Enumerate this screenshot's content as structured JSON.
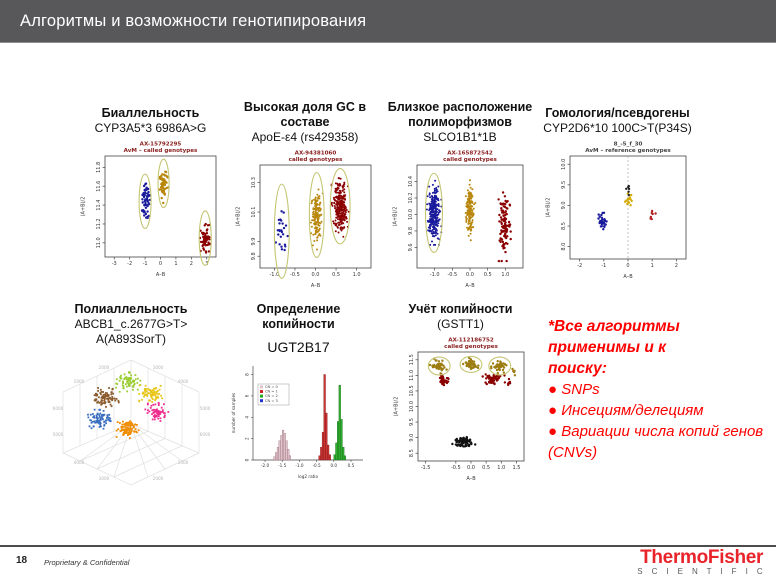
{
  "slide": {
    "title": "Алгоритмы и возможности генотипирования",
    "page_number": "18",
    "footer_note": "Proprietary & Confidential",
    "logo_line1": "ThermoFisher",
    "logo_line2": "S C I E N T I F I C",
    "colors": {
      "header_bg": "#58585a",
      "note_red": "#fe0000",
      "logo_red": "#e8232a",
      "logo_gray": "#58595b",
      "genotype_blue": "#1a1a9c",
      "genotype_olive": "#b8860b",
      "genotype_darkred": "#8b0000",
      "ellipse_khaki": "#c5c573"
    }
  },
  "panels": [
    {
      "heading": "Биаллельность",
      "subheading": "CYP3A5*3 6986A>G"
    },
    {
      "heading": "Высокая доля GC в\nсоставе",
      "subheading": "ApoE-ε4 (rs429358)"
    },
    {
      "heading": "Близкое расположение\nполиморфизмов",
      "subheading": "SLCO1B1*1B"
    },
    {
      "heading": "Гомология/псевдогены",
      "subheading": "CYP2D6*10 100C>T(P34S)"
    },
    {
      "heading": "Полиаллельность",
      "subheading": "ABCB1_c.2677G>T>\nA(A893SorT)"
    },
    {
      "heading": "Определение\nкопийности",
      "subheading": "UGT2B17"
    },
    {
      "heading": "Учёт копийности",
      "subheading": "(GSTT1)"
    }
  ],
  "note": {
    "heading": "*Все алгоритмы\nприменимы и к\nпоиску:",
    "bullets": [
      "● SNPs",
      "● Инсециям/делециям",
      "● Вариации числа копий генов (CNVs)"
    ]
  },
  "chart_data": [
    {
      "type": "scatter",
      "title": "AX-15792295",
      "subtitle": "AvM – called genotypes",
      "title_color": "#8b2020",
      "xlabel": "A–B",
      "ylabel": "(A+B)/2",
      "xlim": [
        -3.6,
        3.6
      ],
      "ylim": [
        10.85,
        11.92
      ],
      "xticks": [
        -3,
        -2,
        -1,
        0,
        1,
        2,
        3
      ],
      "xtick_labels": [
        "-3",
        "-2",
        "-1",
        "0",
        "1",
        "2",
        "3"
      ],
      "yticks": [
        11.0,
        11.2,
        11.4,
        11.6,
        11.8
      ],
      "ytick_labels": [
        "11.0",
        "11.2",
        "11.4",
        "11.6",
        "11.8"
      ],
      "clusters": [
        {
          "color": "#1a1a9c",
          "cx": -1.0,
          "cy": 11.44,
          "sx": 0.13,
          "sy": 0.09,
          "n": 60,
          "ellipse": true
        },
        {
          "color": "#b8860b",
          "cx": 0.2,
          "cy": 11.63,
          "sx": 0.12,
          "sy": 0.08,
          "n": 60,
          "ellipse": true
        },
        {
          "color": "#8b0000",
          "cx": 2.9,
          "cy": 11.05,
          "sx": 0.13,
          "sy": 0.09,
          "n": 60,
          "ellipse": true
        }
      ]
    },
    {
      "type": "scatter",
      "title": "AX-94381060",
      "subtitle": "called genotypes",
      "title_color": "#8b2020",
      "xlabel": "A–B",
      "ylabel": "(A+B)/2",
      "xlim": [
        -1.35,
        1.35
      ],
      "ylim": [
        9.72,
        10.42
      ],
      "xticks": [
        -1.0,
        -0.5,
        0.0,
        0.5,
        1.0
      ],
      "xtick_labels": [
        "-1.0",
        "-0.5",
        "0.0",
        "0.5",
        "1.0"
      ],
      "yticks": [
        9.8,
        9.9,
        10.1,
        10.3
      ],
      "ytick_labels": [
        "9.8",
        "9.9",
        "10.1",
        "10.3"
      ],
      "clusters": [
        {
          "color": "#1a1a9c",
          "cx": -0.82,
          "cy": 9.97,
          "sx": 0.06,
          "sy": 0.1,
          "n": 26,
          "ellipse": true
        },
        {
          "color": "#b8860b",
          "cx": 0.03,
          "cy": 10.08,
          "sx": 0.06,
          "sy": 0.09,
          "n": 150,
          "ellipse": true
        },
        {
          "color": "#8b0000",
          "cx": 0.6,
          "cy": 10.14,
          "sx": 0.08,
          "sy": 0.08,
          "n": 280,
          "ellipse": true
        }
      ]
    },
    {
      "type": "scatter",
      "title": "AX-165872542",
      "subtitle": "called genotypes",
      "title_color": "#8b2020",
      "xlabel": "A–B",
      "ylabel": "(A+B)/2",
      "xlim": [
        -1.5,
        1.5
      ],
      "ylim": [
        9.35,
        10.6
      ],
      "xticks": [
        -1.0,
        -0.5,
        0.0,
        0.5,
        1.0
      ],
      "xtick_labels": [
        "-1.0",
        "-0.5",
        "0.0",
        "0.5",
        "1.0"
      ],
      "yticks": [
        9.6,
        9.8,
        10.0,
        10.2,
        10.4
      ],
      "ytick_labels": [
        "9.6",
        "9.8",
        "10.0",
        "10.2",
        "10.4"
      ],
      "clusters": [
        {
          "color": "#1a1a9c",
          "cx": -1.02,
          "cy": 10.02,
          "sx": 0.08,
          "sy": 0.15,
          "n": 260,
          "ellipse": true
        },
        {
          "color": "#b8860b",
          "cx": 0.0,
          "cy": 10.05,
          "sx": 0.06,
          "sy": 0.14,
          "n": 160,
          "ellipse": false
        },
        {
          "color": "#8b0000",
          "cx": 0.97,
          "cy": 9.85,
          "sx": 0.07,
          "sy": 0.16,
          "n": 110,
          "ellipse": false
        }
      ]
    },
    {
      "type": "scatter",
      "title": "8_-5_f_30",
      "subtitle": "AvM – reference genotypes",
      "title_color": "#444444",
      "xlabel": "A–B",
      "ylabel": "(A+B)/2",
      "xlim": [
        -2.4,
        2.4
      ],
      "ylim": [
        7.7,
        10.2
      ],
      "vline": 0,
      "xticks": [
        -2,
        -1,
        0,
        1,
        2
      ],
      "xtick_labels": [
        "-2",
        "-1",
        "0",
        "1",
        "2"
      ],
      "yticks": [
        8.0,
        8.5,
        9.0,
        9.5,
        10.0
      ],
      "ytick_labels": [
        "8.0",
        "8.5",
        "9.0",
        "9.5",
        "10.0"
      ],
      "clusters": [
        {
          "color": "#1a1a9c",
          "cx": -1.05,
          "cy": 8.6,
          "sx": 0.08,
          "sy": 0.14,
          "n": 32,
          "ellipse": false
        },
        {
          "color": "#d4aa00",
          "cx": 0.02,
          "cy": 9.15,
          "sx": 0.06,
          "sy": 0.09,
          "n": 13,
          "ellipse": false
        },
        {
          "color": "#222222",
          "cx": 0.0,
          "cy": 9.4,
          "sx": 0.05,
          "sy": 0.07,
          "n": 6,
          "ellipse": false
        },
        {
          "color": "#b22222",
          "cx": 1.0,
          "cy": 8.75,
          "sx": 0.09,
          "sy": 0.06,
          "n": 7,
          "ellipse": false
        }
      ]
    },
    {
      "type": "scatter3d",
      "tick_labels": [
        "1000",
        "2000",
        "3000",
        "4000",
        "5000",
        "6000"
      ],
      "clusters": [
        {
          "color": "#8b5a2b",
          "fx": 0.35,
          "fy": 0.33,
          "n": 85
        },
        {
          "color": "#9acd32",
          "fx": 0.48,
          "fy": 0.22,
          "n": 70
        },
        {
          "color": "#e8c619",
          "fx": 0.62,
          "fy": 0.3,
          "n": 75
        },
        {
          "color": "#ef2f8f",
          "fx": 0.65,
          "fy": 0.43,
          "n": 70
        },
        {
          "color": "#3a6fbf",
          "fx": 0.31,
          "fy": 0.48,
          "n": 85
        },
        {
          "color": "#f08c00",
          "fx": 0.47,
          "fy": 0.54,
          "n": 90
        }
      ]
    },
    {
      "type": "histogram",
      "xlabel": "log2 ratio",
      "ylabel": "number of samples",
      "xlim": [
        -2.35,
        0.85
      ],
      "ylim": [
        0,
        8.8
      ],
      "xticks": [
        -2.0,
        -1.5,
        -1.0,
        -0.5,
        0.0,
        0.5
      ],
      "xtick_labels": [
        "-2.0",
        "-1.5",
        "-1.0",
        "-0.5",
        "0.0",
        "0.5"
      ],
      "yticks": [
        0,
        2,
        4,
        6,
        8
      ],
      "ytick_labels": [
        "0",
        "2",
        "4",
        "6",
        "8"
      ],
      "bar_width": 0.05,
      "legend": [
        {
          "label": "CN = 0",
          "color": "#dfc3cb"
        },
        {
          "label": "CN = 1",
          "color": "#cc2222"
        },
        {
          "label": "CN = 2",
          "color": "#22aa22"
        },
        {
          "label": "CN = 3",
          "color": "#2233cc"
        }
      ],
      "groups": [
        {
          "color": "#dfc3cb",
          "edge": "#9a6b76",
          "start": -1.75,
          "heights": [
            0.3,
            0.7,
            1.2,
            1.8,
            2.3,
            2.8,
            2.5,
            1.8,
            1.0,
            0.4
          ]
        },
        {
          "color": "#cc3333",
          "edge": "#7a1515",
          "start": -0.44,
          "heights": [
            0.4,
            1.2,
            2.6,
            8.0,
            4.4,
            1.4,
            0.5
          ]
        },
        {
          "color": "#2fae2f",
          "edge": "#156615",
          "start": 0.0,
          "heights": [
            0.5,
            1.6,
            3.6,
            7.0,
            3.8,
            1.2,
            0.4
          ]
        }
      ]
    },
    {
      "type": "scatter",
      "title": "AX-112186752",
      "subtitle": "called genotypes",
      "title_color": "#8b2020",
      "xlabel": "A–B",
      "ylabel": "(A+B)/2",
      "xlim": [
        -1.75,
        1.75
      ],
      "ylim": [
        8.25,
        11.75
      ],
      "xticks": [
        -1.5,
        -0.5,
        0.0,
        0.5,
        1.0,
        1.5
      ],
      "xtick_labels": [
        "-1.5",
        "-0.5",
        "0.0",
        "0.5",
        "1.0",
        "1.5"
      ],
      "yticks": [
        8.5,
        9.0,
        9.5,
        10.0,
        10.5,
        11.0,
        11.5
      ],
      "ytick_labels": [
        "8.5",
        "9.0",
        "9.5",
        "10.0",
        "10.5",
        "11.0",
        "11.5"
      ],
      "clusters": [
        {
          "color": "#9c7d12",
          "cx": -1.05,
          "cy": 11.3,
          "sx": 0.12,
          "sy": 0.09,
          "n": 45,
          "ellipse": true
        },
        {
          "color": "#9c7d12",
          "cx": 0.0,
          "cy": 11.35,
          "sx": 0.12,
          "sy": 0.08,
          "n": 45,
          "ellipse": true
        },
        {
          "color": "#9c7d12",
          "cx": 0.95,
          "cy": 11.3,
          "sx": 0.12,
          "sy": 0.09,
          "n": 45,
          "ellipse": true
        },
        {
          "color": "#9c7d12",
          "cx": 1.4,
          "cy": 11.1,
          "sx": 0.05,
          "sy": 0.06,
          "n": 8,
          "ellipse": false
        },
        {
          "color": "#8b0000",
          "cx": -0.9,
          "cy": 10.85,
          "sx": 0.11,
          "sy": 0.08,
          "n": 40,
          "ellipse": false
        },
        {
          "color": "#8b0000",
          "cx": 0.75,
          "cy": 10.9,
          "sx": 0.14,
          "sy": 0.09,
          "n": 55,
          "ellipse": false
        },
        {
          "color": "#8b0000",
          "cx": 1.25,
          "cy": 10.75,
          "sx": 0.06,
          "sy": 0.05,
          "n": 8,
          "ellipse": false
        },
        {
          "color": "#111111",
          "cx": -0.25,
          "cy": 8.85,
          "sx": 0.15,
          "sy": 0.08,
          "n": 70,
          "ellipse": false
        }
      ]
    }
  ]
}
